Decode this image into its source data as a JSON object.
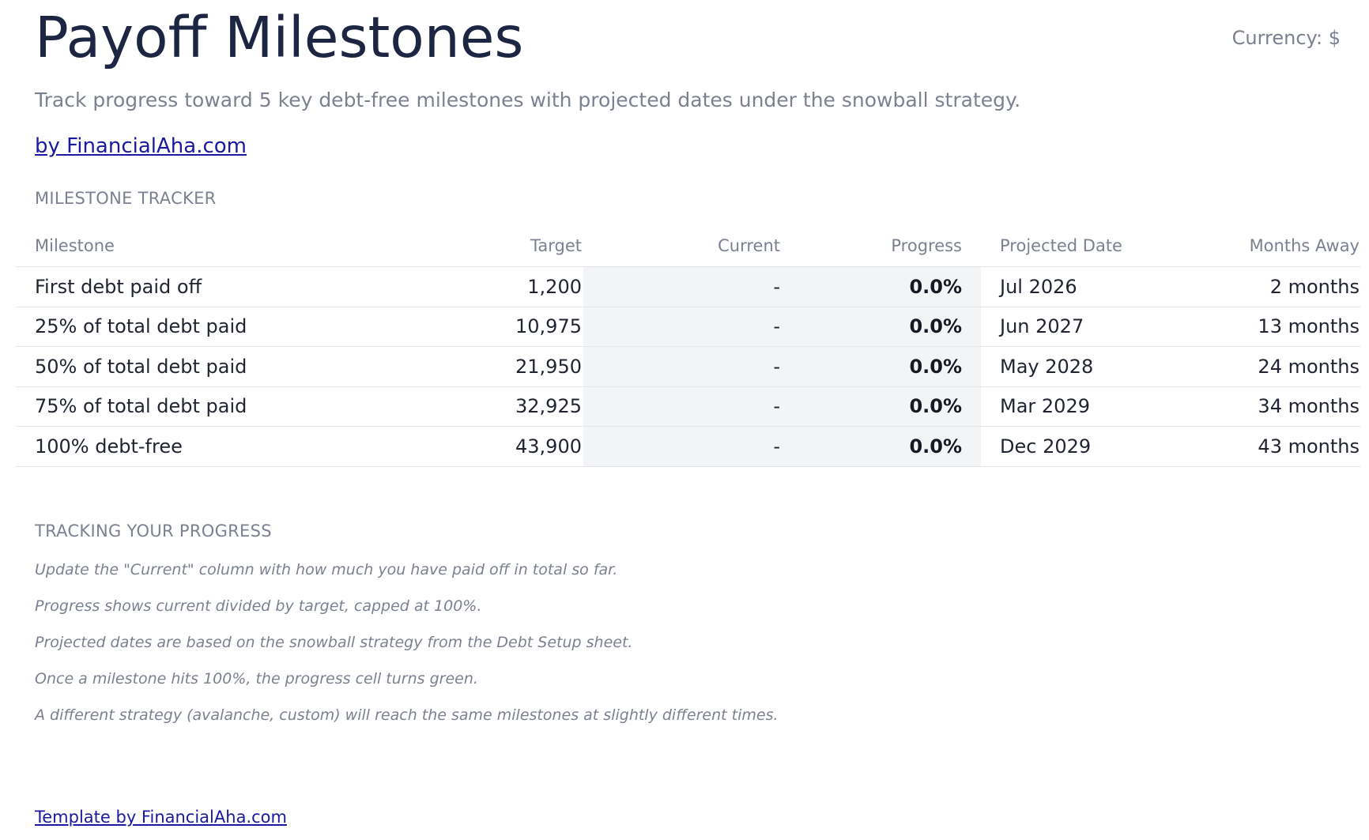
{
  "header": {
    "title": "Payoff Milestones",
    "currency": "Currency: $",
    "subtitle": "Track progress toward 5 key debt-free milestones with projected dates under the snowball strategy.",
    "brand_link": "by FinancialAha.com"
  },
  "tracker": {
    "section_label": "MILESTONE TRACKER",
    "columns": {
      "milestone": "Milestone",
      "target": "Target",
      "current": "Current",
      "progress": "Progress",
      "projected_date": "Projected Date",
      "months_away": "Months Away"
    },
    "rows": [
      {
        "milestone": "First debt paid off",
        "target": "1,200",
        "current": "-",
        "progress": "0.0%",
        "projected_date": "Jul 2026",
        "months_away": "2 months"
      },
      {
        "milestone": "25% of total debt paid",
        "target": "10,975",
        "current": "-",
        "progress": "0.0%",
        "projected_date": "Jun 2027",
        "months_away": "13 months"
      },
      {
        "milestone": "50% of total debt paid",
        "target": "21,950",
        "current": "-",
        "progress": "0.0%",
        "projected_date": "May 2028",
        "months_away": "24 months"
      },
      {
        "milestone": "75% of total debt paid",
        "target": "32,925",
        "current": "-",
        "progress": "0.0%",
        "projected_date": "Mar 2029",
        "months_away": "34 months"
      },
      {
        "milestone": "100% debt-free",
        "target": "43,900",
        "current": "-",
        "progress": "0.0%",
        "projected_date": "Dec 2029",
        "months_away": "43 months"
      }
    ]
  },
  "tracking": {
    "section_label": "TRACKING YOUR PROGRESS",
    "notes": [
      "Update the \"Current\" column with how much you have paid off in total so far.",
      "Progress shows current divided by target, capped at 100%.",
      "Projected dates are based on the snowball strategy from the Debt Setup sheet.",
      "Once a milestone hits 100%, the progress cell turns green.",
      "A different strategy (avalanche, custom) will reach the same milestones at slightly different times."
    ]
  },
  "footer": {
    "link": "Template by FinancialAha.com"
  },
  "colors": {
    "title": "#1c2541",
    "muted": "#7b8190",
    "link": "#1a1aa0",
    "input_cell_bg": "#f3f4f6",
    "row_border": "#e4e6ea"
  }
}
